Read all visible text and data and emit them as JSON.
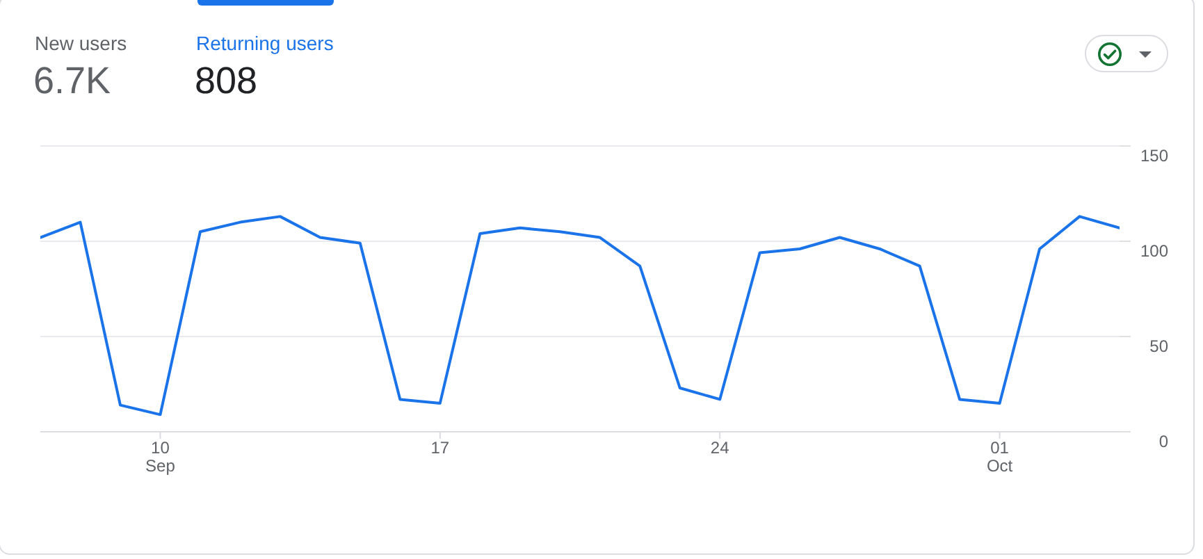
{
  "chart_data": {
    "type": "line",
    "annotations": [
      "New users",
      "6.7K",
      "808"
    ],
    "x": [
      "--09-07",
      "--09-08",
      "--09-09",
      "--09-10",
      "--09-11",
      "--09-12",
      "--09-13",
      "--09-14",
      "--09-15",
      "--09-16",
      "--09-17",
      "--09-18",
      "--09-19",
      "--09-20",
      "--09-21",
      "--09-22",
      "--09-23",
      "--09-24",
      "--09-25",
      "--09-26",
      "--09-27",
      "--09-28",
      "--09-29",
      "--09-30",
      "--10-01",
      "--10-02",
      "--10-03",
      "--10-04"
    ],
    "series": [
      {
        "name": "Returning users",
        "color": "#1a73e8",
        "values": [
          102,
          110,
          14,
          9,
          105,
          110,
          113,
          102,
          99,
          17,
          15,
          104,
          107,
          105,
          102,
          87,
          23,
          17,
          94,
          96,
          102,
          96,
          87,
          17,
          15,
          96,
          113,
          107
        ]
      }
    ],
    "xlim": [
      "--09-07",
      "--10-04"
    ],
    "xticks": [
      {
        "value": "--09-10",
        "label": "10\nSep"
      },
      {
        "value": "--09-17",
        "label": "17"
      },
      {
        "value": "--09-24",
        "label": "24"
      },
      {
        "value": "--10-01",
        "label": "01\nOct"
      }
    ],
    "ylim": [
      0,
      150
    ],
    "yticks": [
      0,
      50,
      100,
      150
    ],
    "grid": "y",
    "line_style": "solid"
  }
}
